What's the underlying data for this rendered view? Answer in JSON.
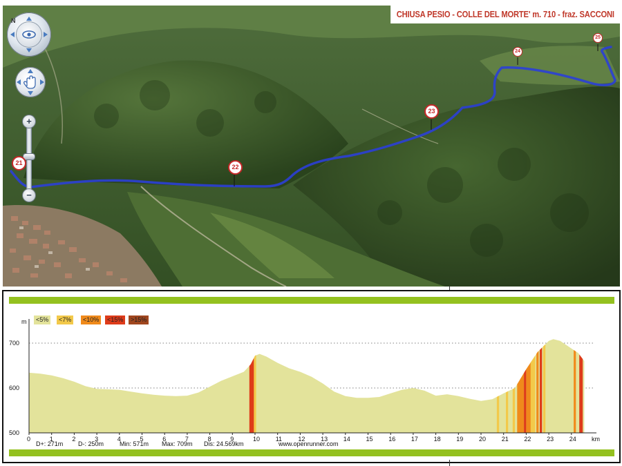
{
  "map": {
    "title": "CHIUSA PESIO - COLLE DEL MORTE' m. 710 - fraz. SACCONI",
    "north_label": "N",
    "zoom_in_label": "+",
    "zoom_out_label": "−",
    "markers": [
      "21",
      "22",
      "23",
      "24",
      "25"
    ],
    "route_color": "#2b3fd6",
    "marker_color": "#c62828"
  },
  "profile": {
    "legend": [
      {
        "label": "<5%",
        "color": "#e3e39b"
      },
      {
        "label": "<7%",
        "color": "#f3c94a"
      },
      {
        "label": "<10%",
        "color": "#f08a1b"
      },
      {
        "label": "<15%",
        "color": "#de3b1a"
      },
      {
        "label": ">15%",
        "color": "#a0461e"
      }
    ],
    "stats": {
      "gain": "D+: 271m",
      "loss": "D-: 250m",
      "min": "Min: 571m",
      "max": "Max: 709m",
      "distance": "Dis: 24.569km",
      "site": "www.openrunner.com"
    }
  },
  "chart_data": {
    "type": "area",
    "xlabel": "km",
    "ylabel": "m",
    "xlim": [
      0,
      25
    ],
    "ylim": [
      500,
      720
    ],
    "x_ticks": [
      0,
      1,
      2,
      3,
      4,
      5,
      6,
      7,
      8,
      9,
      10,
      11,
      12,
      13,
      14,
      15,
      16,
      17,
      18,
      19,
      20,
      21,
      22,
      23,
      24
    ],
    "y_ticks": [
      500,
      600,
      700
    ],
    "grid": "dotted horizontal at 600 and 700",
    "series": [
      {
        "x": [
          0,
          0.5,
          1,
          1.5,
          2,
          2.5,
          3,
          3.5,
          4,
          4.5,
          5,
          5.5,
          6,
          6.5,
          7,
          7.5,
          8,
          8.5,
          9,
          9.5,
          9.8,
          10,
          10.2,
          10.5,
          11,
          11.5,
          12,
          12.5,
          13,
          13.5,
          14,
          14.5,
          15,
          15.5,
          16,
          16.5,
          17,
          17.5,
          18,
          18.5,
          19,
          19.5,
          20,
          20.5,
          21,
          21.5,
          22,
          22.5,
          23,
          23.2,
          23.5,
          24,
          24.3,
          24.569
        ],
        "y": [
          634,
          632,
          628,
          622,
          614,
          604,
          598,
          597,
          596,
          592,
          588,
          585,
          583,
          582,
          583,
          590,
          603,
          616,
          626,
          636,
          652,
          672,
          676,
          670,
          656,
          644,
          636,
          625,
          610,
          592,
          582,
          578,
          578,
          580,
          588,
          596,
          600,
          594,
          583,
          586,
          582,
          576,
          571,
          575,
          588,
          600,
          642,
          680,
          705,
          709,
          705,
          688,
          678,
          660
        ]
      }
    ],
    "steep_segments_km": [
      {
        "from": 9.75,
        "to": 9.95,
        "category": "<15%"
      },
      {
        "from": 9.95,
        "to": 10.05,
        "category": "<7%"
      },
      {
        "from": 20.7,
        "to": 20.8,
        "category": "<7%"
      },
      {
        "from": 21.1,
        "to": 21.2,
        "category": "<7%"
      },
      {
        "from": 21.4,
        "to": 21.5,
        "category": "<7%"
      },
      {
        "from": 21.6,
        "to": 21.9,
        "category": "<10%"
      },
      {
        "from": 21.9,
        "to": 22.0,
        "category": "<15%"
      },
      {
        "from": 22.0,
        "to": 22.2,
        "category": "<10%"
      },
      {
        "from": 22.2,
        "to": 22.4,
        "category": "<7%"
      },
      {
        "from": 22.45,
        "to": 22.55,
        "category": "<10%"
      },
      {
        "from": 22.6,
        "to": 22.7,
        "category": "<15%"
      },
      {
        "from": 22.75,
        "to": 22.85,
        "category": "<7%"
      },
      {
        "from": 24.1,
        "to": 24.2,
        "category": "<10%"
      },
      {
        "from": 24.35,
        "to": 24.5,
        "category": "<15%"
      }
    ]
  }
}
